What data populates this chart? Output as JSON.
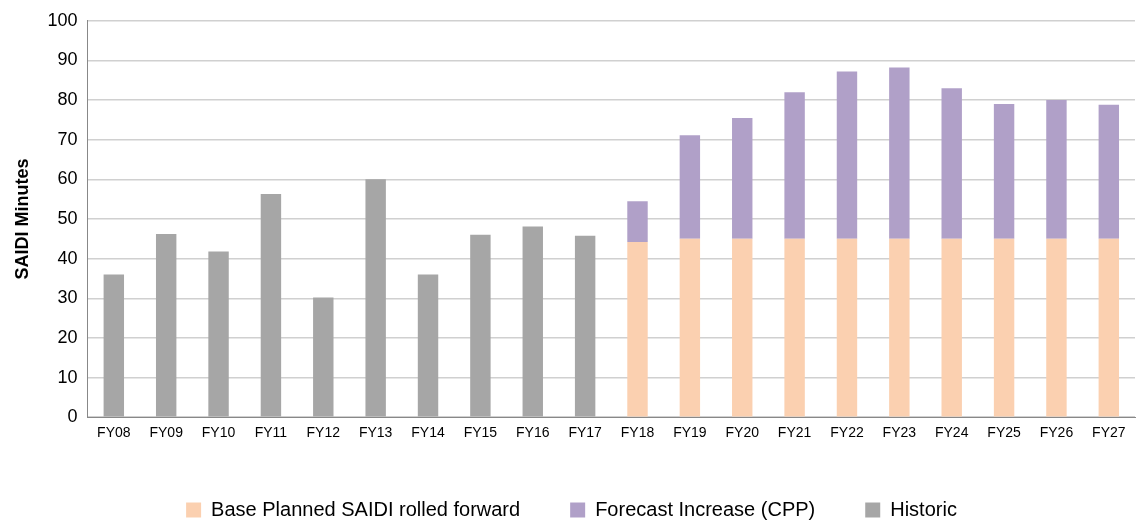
{
  "chart_data": {
    "type": "bar",
    "stacked": true,
    "ylabel": "SAIDI Minutes",
    "categories": [
      "FY08",
      "FY09",
      "FY10",
      "FY11",
      "FY12",
      "FY13",
      "FY14",
      "FY15",
      "FY16",
      "FY17",
      "FY18",
      "FY19",
      "FY20",
      "FY21",
      "FY22",
      "FY23",
      "FY24",
      "FY25",
      "FY26",
      "FY27"
    ],
    "series": [
      {
        "name": "Base Planned SAIDI rolled forward",
        "color": "#fbd0b0",
        "values": [
          null,
          null,
          null,
          null,
          null,
          null,
          null,
          null,
          null,
          null,
          44.2,
          45,
          45,
          45,
          45,
          45,
          45,
          45,
          45,
          45
        ]
      },
      {
        "name": "Forecast Increase (CPP)",
        "color": "#b0a0c8",
        "values": [
          null,
          null,
          null,
          null,
          null,
          null,
          null,
          null,
          null,
          null,
          10.3,
          26.1,
          30.5,
          37,
          42.2,
          43.2,
          38,
          34,
          35,
          33.8
        ]
      },
      {
        "name": "Historic",
        "color": "#a6a6a6",
        "values": [
          36,
          46.2,
          41.8,
          56.3,
          30.2,
          60,
          36,
          46,
          48.1,
          45.8,
          null,
          null,
          null,
          null,
          null,
          null,
          null,
          null,
          null,
          null
        ]
      }
    ],
    "ylim": [
      0,
      100
    ],
    "yticks": [
      0,
      10,
      20,
      30,
      40,
      50,
      60,
      70,
      80,
      90,
      100
    ],
    "grid": "y",
    "legend": "bottom"
  }
}
